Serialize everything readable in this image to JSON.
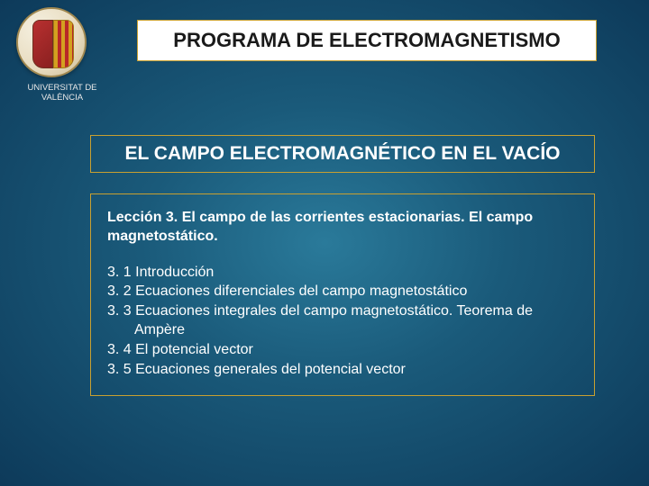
{
  "university": {
    "line1": "UNIVERSITAT DE",
    "line2": "VALÈNCIA"
  },
  "title": "PROGRAMA DE ELECTROMAGNETISMO",
  "subtitle": "EL CAMPO ELECTROMAGNÉTICO EN EL VACÍO",
  "lesson": {
    "heading": "Lección 3. El campo de las corrientes estacionarias. El campo magnetostático.",
    "items": [
      "3. 1 Introducción",
      "3. 2 Ecuaciones diferenciales del campo magnetostático",
      "3. 3 Ecuaciones integrales del campo magnetostático. Teorema de",
      "Ampère",
      "3. 4 El potencial vector",
      "3. 5 Ecuaciones generales del potencial vector"
    ],
    "indent_flags": [
      false,
      false,
      false,
      true,
      false,
      false
    ]
  },
  "colors": {
    "border": "#c8a030",
    "title_bg": "#ffffff",
    "title_text": "#1a1a1a",
    "body_text": "#ffffff"
  }
}
